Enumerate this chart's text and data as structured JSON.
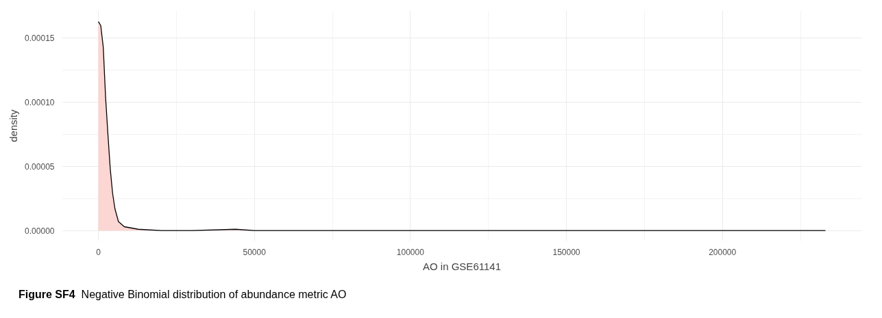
{
  "chart_data": {
    "type": "area",
    "xlabel": "AO in GSE61141",
    "ylabel": "density",
    "x": [
      0,
      760,
      1570,
      2310,
      3060,
      3810,
      4560,
      5310,
      6430,
      8300,
      12800,
      20200,
      30000,
      44000,
      50000,
      100000,
      163000,
      233000
    ],
    "series": [
      {
        "color": "#fcd6d3",
        "values": [
          0.000163,
          0.00016,
          0.000143,
          0.000104,
          7.5e-05,
          4.8e-05,
          2.9e-05,
          1.7e-05,
          7e-06,
          3e-06,
          1e-06,
          0.0,
          0.0,
          1e-06,
          0.0,
          0.0,
          0.0,
          0.0
        ]
      }
    ],
    "xlim": [
      -11650,
      244650
    ],
    "ylim": [
      -8.2e-06,
      0.0001716
    ],
    "xticks": [
      0,
      50000,
      100000,
      150000,
      200000
    ],
    "yticks": [
      {
        "value": 0,
        "label": "0.00000"
      },
      {
        "value": 5e-05,
        "label": "0.00005"
      },
      {
        "value": 0.0001,
        "label": "0.00010"
      },
      {
        "value": 0.00015,
        "label": "0.00015"
      }
    ],
    "grid": true,
    "annotations": [
      "Figure SF4",
      "Negative Binomial distribution of abundance metric AO"
    ]
  }
}
